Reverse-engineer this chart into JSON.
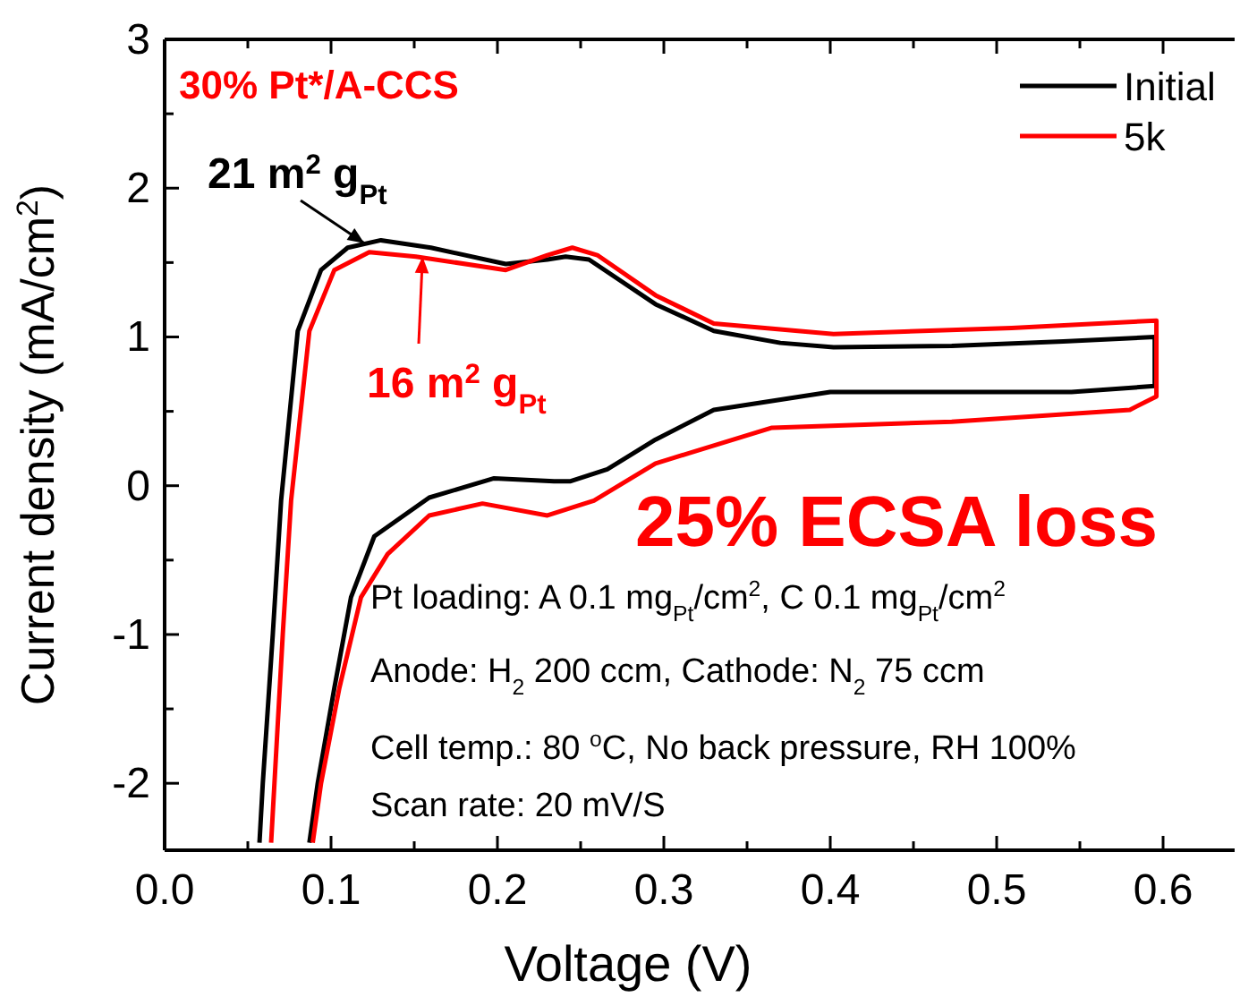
{
  "chart_data": {
    "type": "line",
    "xlabel": "Voltage (V)",
    "ylabel": "Current density (mA/cm$^{2}$)",
    "xlim": [
      0,
      0.643
    ],
    "ylim": [
      -2.45,
      3
    ],
    "xticks": [
      {
        "value": 0,
        "label": "0.0"
      },
      {
        "value": 0.05,
        "label": null
      },
      0.1,
      {
        "value": 0.15,
        "label": null
      },
      0.2,
      {
        "value": 0.25,
        "label": null
      },
      0.3,
      {
        "value": 0.35,
        "label": null
      },
      0.4,
      {
        "value": 0.45,
        "label": null
      },
      0.5,
      {
        "value": 0.55,
        "label": null
      },
      0.6
    ],
    "yticks": [
      {
        "value": -2,
        "label": "-2"
      },
      {
        "value": -1.5,
        "label": null
      },
      {
        "value": -1,
        "label": "-1"
      },
      {
        "value": -0.5,
        "label": null
      },
      0,
      {
        "value": 0.5,
        "label": null
      },
      1,
      {
        "value": 1.5,
        "label": null
      },
      2,
      {
        "value": 2.5,
        "label": null
      },
      3
    ],
    "grid": false,
    "legend": "top right",
    "marker": "none",
    "line_style": "solid",
    "series": [
      {
        "name": "Initial",
        "color": "#000000",
        "x": [
          0.057,
          0.059,
          0.065,
          0.07,
          0.08,
          0.094,
          0.11,
          0.13,
          0.16,
          0.205,
          0.23,
          0.241,
          0.255,
          0.295,
          0.33,
          0.37,
          0.402,
          0.473,
          0.54,
          0.595,
          0.595,
          0.545,
          0.4,
          0.33,
          0.295,
          0.266,
          0.244,
          0.234,
          0.198,
          0.159,
          0.126,
          0.112,
          0.102,
          0.092,
          0.087
        ],
        "values": [
          -2.4,
          -2.0,
          -1.0,
          -0.1,
          1.04,
          1.45,
          1.6,
          1.65,
          1.6,
          1.49,
          1.52,
          1.54,
          1.52,
          1.22,
          1.04,
          0.96,
          0.93,
          0.94,
          0.97,
          1.0,
          0.67,
          0.63,
          0.63,
          0.51,
          0.31,
          0.11,
          0.03,
          0.03,
          0.05,
          -0.08,
          -0.34,
          -0.75,
          -1.36,
          -2.0,
          -2.4
        ]
      },
      {
        "name": "5k",
        "color": "#ff0000",
        "x": [
          0.064,
          0.066,
          0.071,
          0.076,
          0.087,
          0.102,
          0.123,
          0.151,
          0.205,
          0.23,
          0.245,
          0.26,
          0.295,
          0.33,
          0.402,
          0.509,
          0.596,
          0.596,
          0.58,
          0.473,
          0.365,
          0.295,
          0.258,
          0.241,
          0.23,
          0.191,
          0.159,
          0.134,
          0.118,
          0.105,
          0.094,
          0.089
        ],
        "values": [
          -2.4,
          -2.0,
          -1.0,
          -0.1,
          1.04,
          1.45,
          1.57,
          1.54,
          1.45,
          1.55,
          1.6,
          1.55,
          1.28,
          1.09,
          1.02,
          1.06,
          1.11,
          0.6,
          0.51,
          0.43,
          0.39,
          0.15,
          -0.1,
          -0.16,
          -0.2,
          -0.12,
          -0.2,
          -0.46,
          -0.75,
          -1.36,
          -2.0,
          -2.4
        ]
      }
    ],
    "annotations": [
      "30% Pt*/A-CCS",
      {
        "text": "21 m$^{2}$ g$_{Pt}$",
        "x": 0.12,
        "y": 1.63
      },
      {
        "text": "16 m$^{2}$ g$_{Pt}$",
        "x": 0.155,
        "y": 1.54
      },
      "25%  ECSA loss",
      "Pt loading: A 0.1 mg$_{Pt}$/cm$^{2}$, C 0.1 mg$_{Pt}$/cm$^{2}$",
      "Anode: H$_{2}$ 200 ccm, Cathode: N$_{2}$ 75 ccm",
      "Cell temp.: 80 $^{o}$C, No back pressure, RH 100%",
      "Scan rate: 20 mV/S"
    ]
  }
}
